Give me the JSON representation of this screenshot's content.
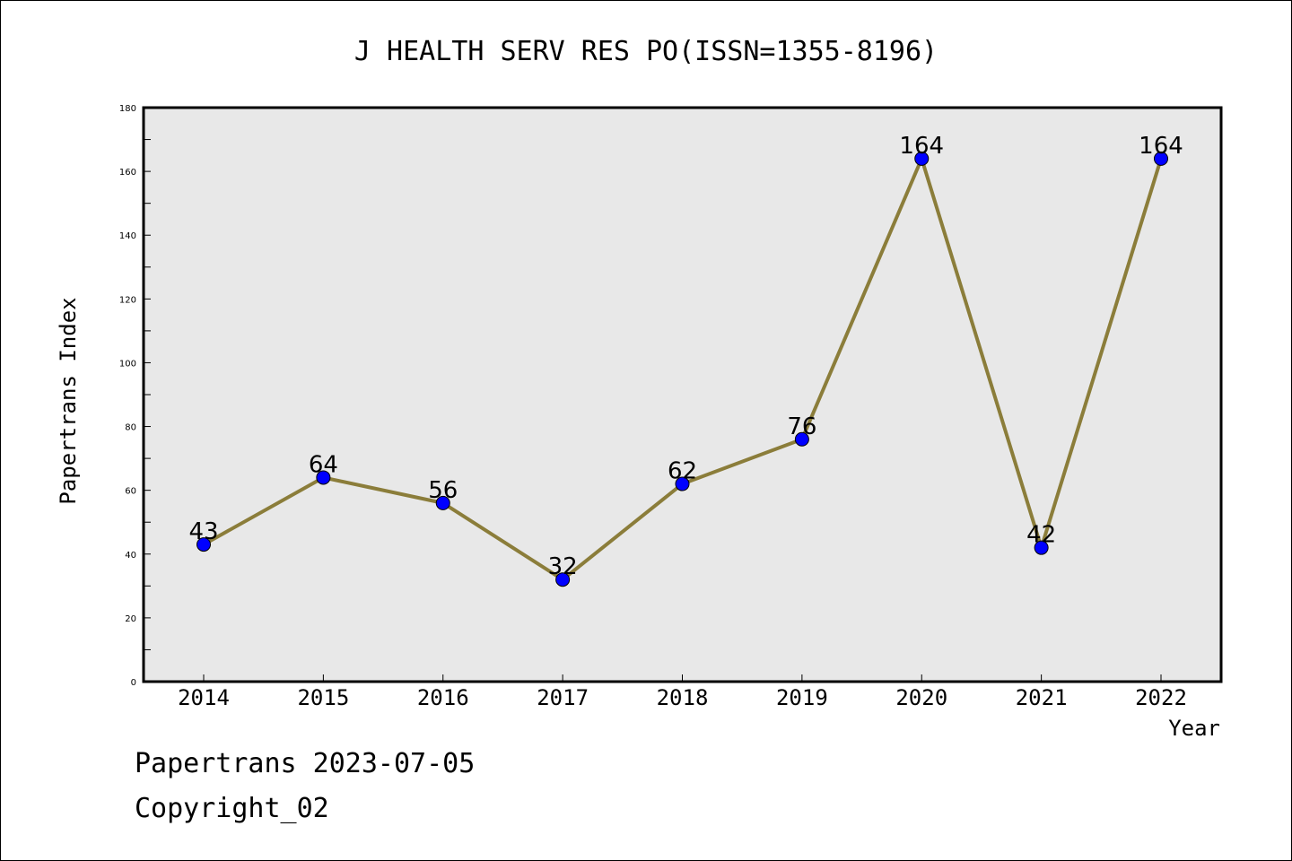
{
  "chart_data": {
    "type": "line",
    "title": "J HEALTH SERV RES PO(ISSN=1355-8196)",
    "xlabel": "Year",
    "ylabel": "Papertrans Index",
    "categories": [
      "2014",
      "2015",
      "2016",
      "2017",
      "2018",
      "2019",
      "2020",
      "2021",
      "2022"
    ],
    "series": [
      {
        "values": [
          43,
          64,
          56,
          32,
          62,
          76,
          164,
          42,
          164
        ]
      }
    ],
    "ylim": [
      0,
      180
    ],
    "yticks": [
      0,
      20,
      40,
      60,
      80,
      100,
      120,
      140,
      160,
      180
    ],
    "grid": false,
    "data_labels": true,
    "colors": {
      "line": "#8b7d3a",
      "marker": "#0000ff",
      "plot_background": "#e8e8e8"
    }
  },
  "footer": {
    "line1": "Papertrans 2023-07-05",
    "line2": "Copyright_02"
  }
}
